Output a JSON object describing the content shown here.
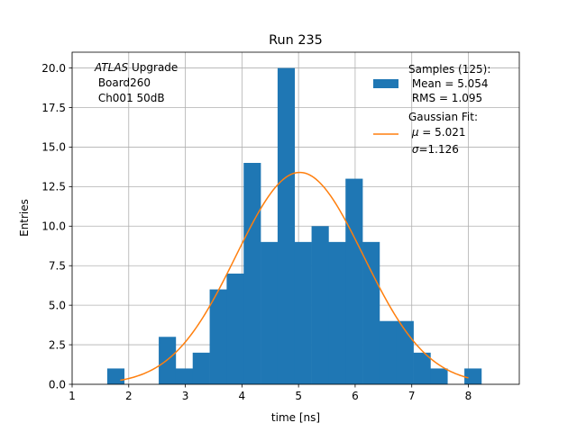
{
  "chart_data": {
    "type": "bar",
    "title": "Run 235",
    "xlabel": "time [ns]",
    "ylabel": "Entries",
    "xlim": [
      1,
      8.9
    ],
    "ylim": [
      0,
      21
    ],
    "grid": true,
    "xticks": [
      1,
      2,
      3,
      4,
      5,
      6,
      7,
      8
    ],
    "xtick_labels": [
      "1",
      "2",
      "3",
      "4",
      "5",
      "6",
      "7",
      "8"
    ],
    "yticks": [
      0,
      2.5,
      5,
      7.5,
      10,
      12.5,
      15,
      17.5,
      20
    ],
    "ytick_labels": [
      "0.0",
      "2.5",
      "5.0",
      "7.5",
      "10.0",
      "12.5",
      "15.0",
      "17.5",
      "20.0"
    ],
    "bins": [
      {
        "x0": 1.62,
        "x1": 1.92,
        "count": 1
      },
      {
        "x0": 1.92,
        "x1": 2.22,
        "count": 0
      },
      {
        "x0": 2.22,
        "x1": 2.53,
        "count": 0
      },
      {
        "x0": 2.53,
        "x1": 2.83,
        "count": 3
      },
      {
        "x0": 2.83,
        "x1": 3.13,
        "count": 1
      },
      {
        "x0": 3.13,
        "x1": 3.43,
        "count": 2
      },
      {
        "x0": 3.43,
        "x1": 3.73,
        "count": 6
      },
      {
        "x0": 3.73,
        "x1": 4.03,
        "count": 7
      },
      {
        "x0": 4.03,
        "x1": 4.33,
        "count": 14
      },
      {
        "x0": 4.33,
        "x1": 4.63,
        "count": 9
      },
      {
        "x0": 4.63,
        "x1": 4.93,
        "count": 20
      },
      {
        "x0": 4.93,
        "x1": 5.23,
        "count": 9
      },
      {
        "x0": 5.23,
        "x1": 5.53,
        "count": 10
      },
      {
        "x0": 5.53,
        "x1": 5.83,
        "count": 9
      },
      {
        "x0": 5.83,
        "x1": 6.13,
        "count": 13
      },
      {
        "x0": 6.13,
        "x1": 6.43,
        "count": 9
      },
      {
        "x0": 6.43,
        "x1": 6.73,
        "count": 4
      },
      {
        "x0": 6.73,
        "x1": 7.03,
        "count": 4
      },
      {
        "x0": 7.03,
        "x1": 7.33,
        "count": 2
      },
      {
        "x0": 7.33,
        "x1": 7.63,
        "count": 1
      },
      {
        "x0": 7.63,
        "x1": 7.93,
        "count": 0
      },
      {
        "x0": 7.93,
        "x1": 8.23,
        "count": 1
      }
    ],
    "fit": {
      "amplitude": 13.4,
      "mu": 5.021,
      "sigma": 1.126,
      "x_range": [
        1.85,
        8.0
      ]
    },
    "series": [
      {
        "kind": "histogram",
        "color": "#1f77b4"
      },
      {
        "kind": "line",
        "color": "#ff7f0e"
      }
    ],
    "annotation": {
      "line1_italic": "ATLAS",
      "line1_rest": " Upgrade",
      "line2": " Board260",
      "line3": " Ch001 50dB"
    },
    "legend": {
      "position": "top-right",
      "hist_title": "Samples (125):",
      "hist_mean": " Mean = 5.054",
      "hist_rms": " RMS = 1.095",
      "fit_title": "Gaussian Fit:",
      "fit_mu_symbol": "μ",
      "fit_mu_value": " = 5.021",
      "fit_sigma_symbol": "σ",
      "fit_sigma_value": "=1.126"
    }
  }
}
